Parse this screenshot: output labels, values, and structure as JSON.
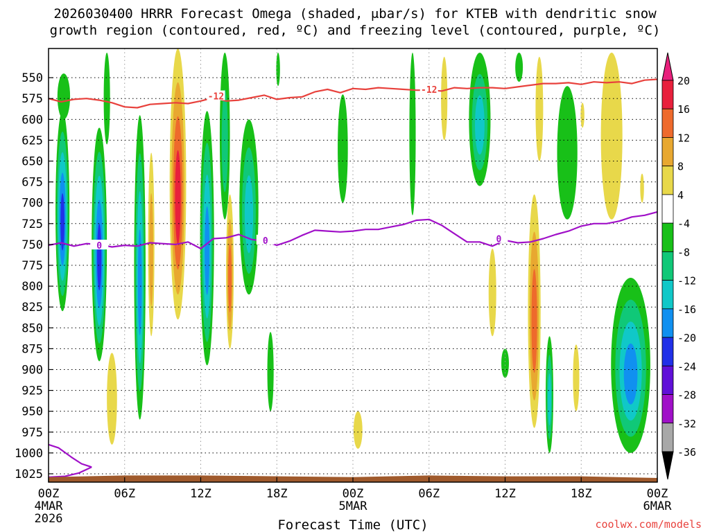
{
  "chart_data": {
    "type": "heatmap",
    "title_line1": "2026030400 HRRR Forecast Omega (shaded, μbar/s) for KTEB with dendritic snow",
    "title_line2": "growth region (contoured, red, ºC) and freezing level (contoured, purple, ºC)",
    "xlabel": "Forecast Time (UTC)",
    "credit": "coolwx.com/models",
    "x_range_hours": [
      0,
      48
    ],
    "y_range_hPa": [
      1035,
      515
    ],
    "y_ticks": [
      550,
      575,
      600,
      625,
      650,
      675,
      700,
      725,
      750,
      775,
      800,
      825,
      850,
      875,
      900,
      925,
      950,
      975,
      1000,
      1025
    ],
    "x_ticks": [
      {
        "h": 0,
        "label": "00Z",
        "sub1": "4MAR",
        "sub2": "2026"
      },
      {
        "h": 6,
        "label": "06Z",
        "sub1": "",
        "sub2": ""
      },
      {
        "h": 12,
        "label": "12Z",
        "sub1": "",
        "sub2": ""
      },
      {
        "h": 18,
        "label": "18Z",
        "sub1": "",
        "sub2": ""
      },
      {
        "h": 24,
        "label": "00Z",
        "sub1": "5MAR",
        "sub2": ""
      },
      {
        "h": 30,
        "label": "06Z",
        "sub1": "",
        "sub2": ""
      },
      {
        "h": 36,
        "label": "12Z",
        "sub1": "",
        "sub2": ""
      },
      {
        "h": 42,
        "label": "18Z",
        "sub1": "",
        "sub2": ""
      },
      {
        "h": 48,
        "label": "00Z",
        "sub1": "6MAR",
        "sub2": ""
      }
    ],
    "colorbar": {
      "labels": [
        "20",
        "16",
        "12",
        "8",
        "4",
        "-4",
        "-8",
        "-12",
        "-16",
        "-20",
        "-24",
        "-28",
        "-32",
        "-36"
      ],
      "colors": [
        "#e8203c",
        "#ee6a2c",
        "#e8a830",
        "#e8d84a",
        "#ffffff",
        "#18c018",
        "#10c878",
        "#10c8c8",
        "#1090f0",
        "#2030e8",
        "#6010d8",
        "#a010c8",
        "#a8a8a8"
      ],
      "top_arrow_color": "#e8207c",
      "bottom_arrow_color": "#000000"
    },
    "shading_cells": [
      {
        "h": 1.1,
        "p_top": 590,
        "p_bot": 830,
        "w": 1.1,
        "levels": [
          "#18c018",
          "#10c878",
          "#10c8c8",
          "#1090f0",
          "#2030e8"
        ]
      },
      {
        "h": 1.2,
        "p_top": 545,
        "p_bot": 600,
        "w": 1.0,
        "levels": [
          "#18c018"
        ]
      },
      {
        "h": 4.0,
        "p_top": 610,
        "p_bot": 890,
        "w": 1.2,
        "levels": [
          "#18c018",
          "#10c878",
          "#10c8c8",
          "#1090f0",
          "#2030e8"
        ]
      },
      {
        "h": 4.6,
        "p_top": 520,
        "p_bot": 630,
        "w": 0.5,
        "levels": [
          "#18c018"
        ]
      },
      {
        "h": 5.0,
        "p_top": 880,
        "p_bot": 990,
        "w": 0.8,
        "levels": [
          "#e8d84a"
        ]
      },
      {
        "h": 7.2,
        "p_top": 595,
        "p_bot": 960,
        "w": 0.9,
        "levels": [
          "#18c018",
          "#10c878",
          "#10c8c8",
          "#1090f0"
        ]
      },
      {
        "h": 8.1,
        "p_top": 640,
        "p_bot": 860,
        "w": 0.5,
        "levels": [
          "#e8d84a",
          "#e8a830"
        ]
      },
      {
        "h": 10.2,
        "p_top": 515,
        "p_bot": 840,
        "w": 1.3,
        "levels": [
          "#e8d84a",
          "#e8a830",
          "#ee6a2c",
          "#e8203c"
        ]
      },
      {
        "h": 12.5,
        "p_top": 590,
        "p_bot": 895,
        "w": 1.1,
        "levels": [
          "#18c018",
          "#10c878",
          "#10c8c8",
          "#1090f0"
        ]
      },
      {
        "h": 13.9,
        "p_top": 520,
        "p_bot": 720,
        "w": 0.8,
        "levels": [
          "#18c018",
          "#10c878"
        ]
      },
      {
        "h": 14.3,
        "p_top": 690,
        "p_bot": 875,
        "w": 0.6,
        "levels": [
          "#e8d84a",
          "#e8a830",
          "#ee6a2c"
        ]
      },
      {
        "h": 15.8,
        "p_top": 600,
        "p_bot": 810,
        "w": 1.5,
        "levels": [
          "#18c018",
          "#10c878",
          "#10c8c8"
        ]
      },
      {
        "h": 17.5,
        "p_top": 855,
        "p_bot": 950,
        "w": 0.5,
        "levels": [
          "#18c018"
        ]
      },
      {
        "h": 18.1,
        "p_top": 520,
        "p_bot": 560,
        "w": 0.3,
        "levels": [
          "#18c018"
        ]
      },
      {
        "h": 23.2,
        "p_top": 570,
        "p_bot": 700,
        "w": 0.8,
        "levels": [
          "#18c018"
        ]
      },
      {
        "h": 24.4,
        "p_top": 950,
        "p_bot": 995,
        "w": 0.7,
        "levels": [
          "#e8d84a"
        ]
      },
      {
        "h": 28.7,
        "p_top": 520,
        "p_bot": 715,
        "w": 0.5,
        "levels": [
          "#18c018"
        ]
      },
      {
        "h": 31.2,
        "p_top": 525,
        "p_bot": 625,
        "w": 0.5,
        "levels": [
          "#e8d84a"
        ]
      },
      {
        "h": 34.0,
        "p_top": 520,
        "p_bot": 680,
        "w": 1.7,
        "levels": [
          "#18c018",
          "#10c878",
          "#10c8c8"
        ]
      },
      {
        "h": 35.0,
        "p_top": 755,
        "p_bot": 860,
        "w": 0.6,
        "levels": [
          "#e8d84a"
        ]
      },
      {
        "h": 36.0,
        "p_top": 875,
        "p_bot": 910,
        "w": 0.6,
        "levels": [
          "#18c018"
        ]
      },
      {
        "h": 37.1,
        "p_top": 520,
        "p_bot": 555,
        "w": 0.6,
        "levels": [
          "#18c018"
        ]
      },
      {
        "h": 38.3,
        "p_top": 690,
        "p_bot": 970,
        "w": 1.0,
        "levels": [
          "#e8d84a",
          "#e8a830",
          "#ee6a2c"
        ]
      },
      {
        "h": 38.7,
        "p_top": 525,
        "p_bot": 650,
        "w": 0.6,
        "levels": [
          "#e8d84a"
        ]
      },
      {
        "h": 39.5,
        "p_top": 860,
        "p_bot": 1000,
        "w": 0.6,
        "levels": [
          "#18c018",
          "#10c878",
          "#10c8c8"
        ]
      },
      {
        "h": 40.9,
        "p_top": 560,
        "p_bot": 720,
        "w": 1.6,
        "levels": [
          "#18c018"
        ]
      },
      {
        "h": 41.6,
        "p_top": 870,
        "p_bot": 950,
        "w": 0.5,
        "levels": [
          "#e8d84a"
        ]
      },
      {
        "h": 42.1,
        "p_top": 580,
        "p_bot": 610,
        "w": 0.3,
        "levels": [
          "#e8d84a"
        ]
      },
      {
        "h": 44.4,
        "p_top": 520,
        "p_bot": 720,
        "w": 1.7,
        "levels": [
          "#e8d84a"
        ]
      },
      {
        "h": 45.9,
        "p_top": 790,
        "p_bot": 1000,
        "w": 3.1,
        "levels": [
          "#18c018",
          "#10c878",
          "#10c8c8",
          "#1090f0"
        ]
      },
      {
        "h": 46.8,
        "p_top": 665,
        "p_bot": 700,
        "w": 0.3,
        "levels": [
          "#e8d84a"
        ]
      }
    ],
    "contours": [
      {
        "name": "-12",
        "color": "#e8413c",
        "h": [
          0,
          1,
          2,
          3,
          4,
          5,
          6,
          7,
          8,
          9,
          10,
          11,
          12,
          13,
          14,
          15,
          16,
          17,
          18,
          19,
          20,
          21,
          22,
          23,
          24,
          25,
          26,
          27,
          28,
          29,
          30,
          31,
          32,
          33,
          34,
          35,
          36,
          37,
          38,
          39,
          40,
          41,
          42,
          43,
          44,
          45,
          46,
          47,
          48
        ],
        "p": [
          575,
          579,
          576,
          575,
          577,
          580,
          585,
          586,
          582,
          581,
          580,
          581,
          578,
          574,
          578,
          577,
          574,
          571,
          576,
          574,
          573,
          567,
          564,
          568,
          563,
          564,
          562,
          563,
          564,
          565,
          565,
          566,
          562,
          563,
          562,
          562,
          563,
          561,
          559,
          557,
          557,
          556,
          558,
          555,
          556,
          555,
          557,
          553,
          552
        ],
        "labels": [
          {
            "h": 13.2,
            "p": 572,
            "text": "-12"
          },
          {
            "h": 30.0,
            "p": 564,
            "text": "-12"
          }
        ]
      },
      {
        "name": "0",
        "color": "#a010c8",
        "h": [
          0,
          1,
          2,
          3,
          4,
          5,
          6,
          7,
          8,
          9,
          10,
          11,
          12,
          13,
          14,
          15,
          16,
          17,
          18,
          19,
          20,
          21,
          22,
          23,
          24,
          25,
          26,
          27,
          28,
          29,
          30,
          31,
          32,
          33,
          34,
          35,
          36,
          37,
          38,
          39,
          40,
          41,
          42,
          43,
          44,
          45,
          46,
          47,
          48
        ],
        "p": [
          751,
          748,
          752,
          749,
          750,
          753,
          751,
          752,
          748,
          749,
          750,
          747,
          755,
          743,
          742,
          738,
          744,
          746,
          751,
          746,
          739,
          733,
          734,
          735,
          734,
          732,
          732,
          729,
          726,
          721,
          720,
          727,
          737,
          747,
          747,
          752,
          745,
          748,
          747,
          743,
          738,
          734,
          728,
          725,
          725,
          722,
          717,
          715,
          711
        ],
        "labels": [
          {
            "h": 4.0,
            "p": 751,
            "text": "0"
          },
          {
            "h": 17.1,
            "p": 745,
            "text": "0"
          },
          {
            "h": 35.5,
            "p": 743,
            "text": "0"
          }
        ]
      },
      {
        "name": "0-low",
        "color": "#a010c8",
        "h": [
          0,
          0.8,
          1.8,
          2.6,
          3.4
        ],
        "p": [
          990,
          994,
          1005,
          1013,
          1017
        ],
        "labels": []
      },
      {
        "name": "0-low2",
        "color": "#a010c8",
        "h": [
          0,
          1.3,
          2.4,
          3.4
        ],
        "p": [
          1029,
          1028,
          1024,
          1017
        ],
        "labels": []
      }
    ],
    "terrain": {
      "color": "#a05a2c",
      "h": [
        0,
        6,
        12,
        24,
        30,
        36,
        42,
        48
      ],
      "p_top": [
        1029,
        1027,
        1027,
        1029,
        1027,
        1028,
        1028,
        1030
      ]
    }
  }
}
